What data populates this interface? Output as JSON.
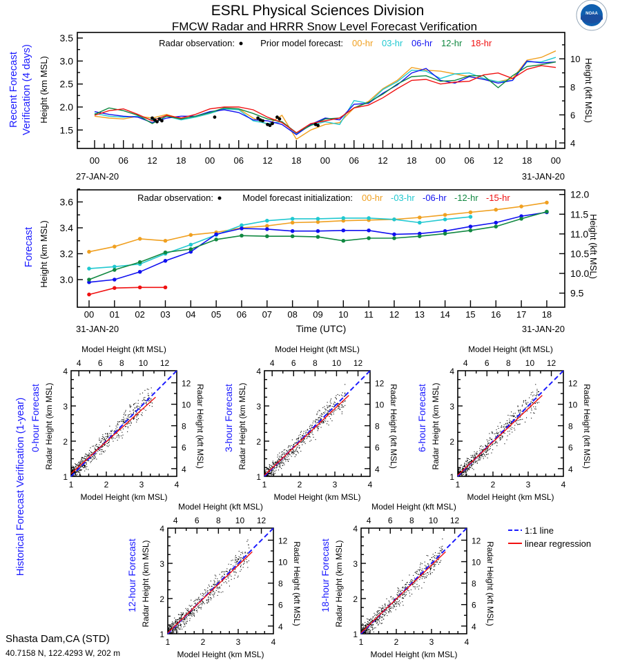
{
  "header": {
    "title": "ESRL Physical Sciences Division",
    "subtitle": "FMCW Radar and HRRR Snow Level Forecast Verification",
    "logo_text": "NOAA"
  },
  "colors": {
    "h00": "#f0a020",
    "h03": "#20c8d0",
    "h06": "#1010f0",
    "h12": "#108840",
    "h15": "#f01010",
    "h18": "#f01010",
    "blue_label": "#1a1aff",
    "one_to_one": "#1a1aff",
    "regression": "#f01010"
  },
  "station": {
    "name": "Shasta Dam,CA (STD)",
    "coords": "40.7158 N, 122.4293 W, 202 m"
  },
  "chart_data": [
    {
      "type": "line",
      "panel_label": [
        "Recent Forecast",
        "Verification (4 days)"
      ],
      "ylabel": "Height (km MSL)",
      "y2label": "Height (kft MSL)",
      "legend_obs": "Radar observation:",
      "legend_model": "Prior model forecast:",
      "ylim": [
        1.1,
        3.62
      ],
      "yticks": [
        "1.5",
        "2.0",
        "2.5",
        "3.0",
        "3.5"
      ],
      "y2ticks": [
        "4",
        "6",
        "8",
        "10"
      ],
      "xticks": [
        "00",
        "06",
        "12",
        "18",
        "00",
        "06",
        "12",
        "18",
        "00",
        "06",
        "12",
        "18",
        "00",
        "06",
        "12",
        "18",
        "00"
      ],
      "date_start": "27-JAN-20",
      "date_end": "31-JAN-20",
      "x_hours_step": 3,
      "series": [
        {
          "name": "00-hr",
          "color": "h00",
          "values": [
            1.8,
            1.76,
            1.74,
            1.8,
            1.76,
            1.84,
            1.74,
            1.78,
            1.86,
            1.96,
            1.96,
            1.76,
            1.62,
            1.82,
            1.3,
            1.5,
            1.62,
            1.66,
            1.98,
            2.12,
            2.4,
            2.58,
            2.86,
            2.8,
            2.78,
            2.72,
            2.66,
            2.6,
            2.55,
            2.62,
            3.02,
            3.08,
            3.22
          ]
        },
        {
          "name": "03-hr",
          "color": "h03",
          "values": [
            1.86,
            1.8,
            1.78,
            1.8,
            1.72,
            1.8,
            1.72,
            1.78,
            1.86,
            1.96,
            1.94,
            1.7,
            1.64,
            1.68,
            1.42,
            1.6,
            1.68,
            1.62,
            2.14,
            2.08,
            2.38,
            2.55,
            2.8,
            2.78,
            2.62,
            2.72,
            2.74,
            2.62,
            2.55,
            2.58,
            2.98,
            2.98,
            3.08
          ]
        },
        {
          "name": "06-hr",
          "color": "h06",
          "values": [
            1.9,
            1.84,
            1.8,
            1.78,
            1.66,
            1.76,
            1.8,
            1.8,
            1.9,
            1.94,
            1.88,
            1.72,
            1.7,
            1.62,
            1.4,
            1.62,
            1.76,
            1.72,
            2.06,
            2.08,
            2.3,
            2.48,
            2.74,
            2.84,
            2.58,
            2.52,
            2.66,
            2.6,
            2.52,
            2.58,
            3.0,
            2.96,
            2.98
          ]
        },
        {
          "name": "12-hr",
          "color": "h12",
          "values": [
            1.84,
            1.98,
            1.92,
            1.82,
            1.64,
            1.8,
            1.74,
            1.8,
            1.88,
            1.98,
            1.96,
            1.86,
            1.74,
            1.68,
            1.44,
            1.6,
            1.74,
            1.76,
            1.98,
            2.1,
            2.28,
            2.5,
            2.66,
            2.68,
            2.56,
            2.58,
            2.68,
            2.68,
            2.42,
            2.68,
            2.88,
            2.92,
            2.98
          ]
        },
        {
          "name": "18-hr",
          "color": "h18",
          "values": [
            1.82,
            1.92,
            1.96,
            1.84,
            1.7,
            1.82,
            1.76,
            1.84,
            1.96,
            2.0,
            2.0,
            1.94,
            1.78,
            1.66,
            1.44,
            1.64,
            1.7,
            1.76,
            1.98,
            2.04,
            2.2,
            2.4,
            2.58,
            2.6,
            2.5,
            2.54,
            2.56,
            2.7,
            2.74,
            2.62,
            2.82,
            2.9,
            2.86
          ]
        }
      ],
      "observations": [
        [
          12,
          1.76
        ],
        [
          12.5,
          1.72
        ],
        [
          13,
          1.68
        ],
        [
          13.5,
          1.74
        ],
        [
          14,
          1.7
        ],
        [
          25,
          1.78
        ],
        [
          34,
          1.76
        ],
        [
          34.5,
          1.72
        ],
        [
          35,
          1.7
        ],
        [
          36,
          1.62
        ],
        [
          36.5,
          1.6
        ],
        [
          37,
          1.64
        ],
        [
          38,
          1.78
        ],
        [
          38.5,
          1.74
        ],
        [
          46,
          1.62
        ],
        [
          46.5,
          1.6
        ]
      ]
    },
    {
      "type": "line",
      "panel_label": "Forecast",
      "ylabel": "Height (km MSL)",
      "y2label": "Height (kft MSL)",
      "xlabel": "Time (UTC)",
      "legend_obs": "Radar observation:",
      "legend_model": "Model forecast initialization:",
      "ylim": [
        2.78,
        3.68
      ],
      "yticks": [
        "3.0",
        "3.2",
        "3.4",
        "3.6"
      ],
      "y2ticks": [
        "9.5",
        "10.0",
        "10.5",
        "11.0",
        "11.5",
        "12.0"
      ],
      "xticks": [
        "00",
        "01",
        "02",
        "03",
        "04",
        "05",
        "06",
        "07",
        "08",
        "09",
        "10",
        "11",
        "12",
        "13",
        "14",
        "15",
        "16",
        "17",
        "18"
      ],
      "date_start": "31-JAN-20",
      "date_end": "31-JAN-20",
      "series": [
        {
          "name": "00-hr",
          "color": "h00",
          "values": [
            3.215,
            3.255,
            3.315,
            3.3,
            3.345,
            3.365,
            3.4,
            3.415,
            3.44,
            3.445,
            3.455,
            3.46,
            3.465,
            3.48,
            3.5,
            3.52,
            3.54,
            3.565,
            3.595
          ]
        },
        {
          "name": "-03-hr",
          "color": "h03",
          "values": [
            3.085,
            3.1,
            3.12,
            3.2,
            3.27,
            3.345,
            3.42,
            3.455,
            3.47,
            3.47,
            3.475,
            3.475,
            3.465,
            3.44,
            3.465,
            3.485
          ]
        },
        {
          "name": "-06-hr",
          "color": "h06",
          "values": [
            2.98,
            3.0,
            3.06,
            3.145,
            3.215,
            3.35,
            3.395,
            3.39,
            3.375,
            3.375,
            3.38,
            3.38,
            3.35,
            3.355,
            3.375,
            3.41,
            3.44,
            3.49,
            3.52
          ]
        },
        {
          "name": "-12-hr",
          "color": "h12",
          "values": [
            3.0,
            3.075,
            3.135,
            3.21,
            3.235,
            3.31,
            3.34,
            3.335,
            3.335,
            3.33,
            3.3,
            3.32,
            3.32,
            3.335,
            3.355,
            3.38,
            3.41,
            3.47,
            3.525
          ]
        },
        {
          "name": "-15-hr",
          "color": "h15",
          "values": [
            2.885,
            2.935,
            2.94,
            2.94
          ]
        }
      ]
    },
    {
      "type": "scatter",
      "panel_label": "Historical Forecast Verification (1-year)",
      "xlabel": "Model Height (km MSL)",
      "x2label": "Model Height (kft MSL)",
      "ylabel": "Radar Height (km MSL)",
      "y2label": "Radar Height (kft MSL)",
      "xlim": [
        1,
        4
      ],
      "ylim": [
        1,
        4
      ],
      "kmticks": [
        "1",
        "2",
        "3",
        "4"
      ],
      "kftticks": [
        "4",
        "6",
        "8",
        "10",
        "12"
      ],
      "legend": [
        "1:1 line",
        "linear regression"
      ],
      "panels": [
        {
          "title": "0-hour Forecast",
          "regression": {
            "slope": 0.904,
            "intercept": 0.176,
            "x_end": 3.4
          },
          "seed": 11
        },
        {
          "title": "3-hour Forecast",
          "regression": {
            "slope": 0.946,
            "intercept": 0.085,
            "x_end": 3.4
          },
          "seed": 23
        },
        {
          "title": "6-hour Forecast",
          "regression": {
            "slope": 0.946,
            "intercept": 0.085,
            "x_end": 3.4
          },
          "seed": 37
        },
        {
          "title": "12-hour Forecast",
          "regression": {
            "slope": 0.958,
            "intercept": 0.072,
            "x_end": 3.4
          },
          "seed": 51
        },
        {
          "title": "18-hour Forecast",
          "regression": {
            "slope": 0.958,
            "intercept": 0.072,
            "x_end": 3.4
          },
          "seed": 67
        }
      ]
    }
  ]
}
